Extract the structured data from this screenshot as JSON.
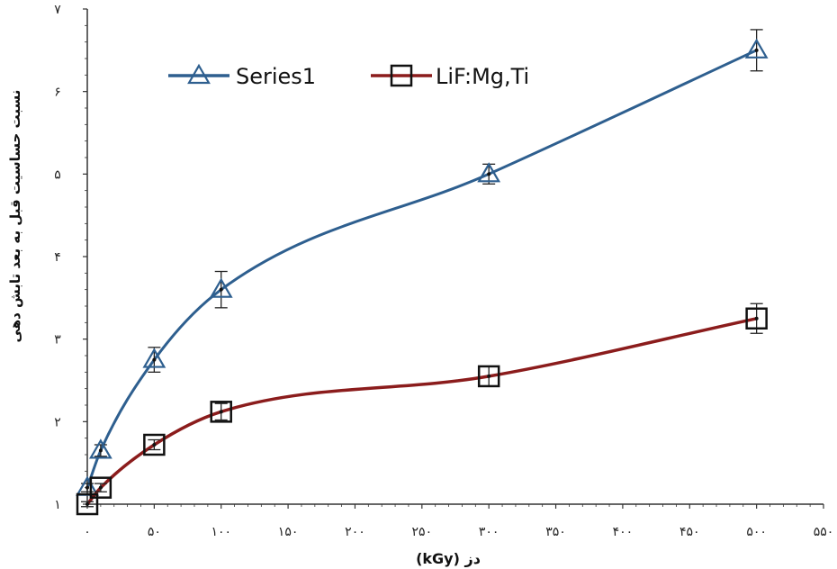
{
  "chart_data": {
    "type": "line",
    "xlabel": "دز (kGy)",
    "ylabel": "نسبت حساسیت قبل به بعد تابش دهی",
    "xlim": [
      0,
      550
    ],
    "ylim": [
      1,
      7
    ],
    "x_ticks": [
      0,
      50,
      100,
      150,
      200,
      250,
      300,
      350,
      400,
      450,
      500,
      550
    ],
    "x_tick_labels": [
      "۰",
      "۵۰",
      "۱۰۰",
      "۱۵۰",
      "۲۰۰",
      "۲۵۰",
      "۳۰۰",
      "۳۵۰",
      "۴۰۰",
      "۴۵۰",
      "۵۰۰",
      "۵۵۰"
    ],
    "y_ticks": [
      1,
      2,
      3,
      4,
      5,
      6,
      7
    ],
    "y_tick_labels": [
      "۱",
      "۲",
      "۳",
      "۴",
      "۵",
      "۶",
      "۷"
    ],
    "legend_position": "top-left",
    "grid": false,
    "series": [
      {
        "name": "Series1",
        "color": "#2e5f8f",
        "marker": "triangle",
        "x": [
          0,
          10,
          50,
          100,
          300,
          500
        ],
        "y": [
          1.2,
          1.65,
          2.75,
          3.6,
          5.0,
          6.5
        ],
        "error": [
          0.05,
          0.07,
          0.15,
          0.22,
          0.12,
          0.25
        ]
      },
      {
        "name": "LiF:Mg,Ti",
        "color": "#8b1c1c",
        "marker": "square",
        "x": [
          0,
          10,
          50,
          100,
          300,
          500
        ],
        "y": [
          1.0,
          1.2,
          1.72,
          2.12,
          2.55,
          3.25
        ],
        "error": [
          0.03,
          0.05,
          0.06,
          0.1,
          0.12,
          0.18
        ]
      }
    ]
  }
}
